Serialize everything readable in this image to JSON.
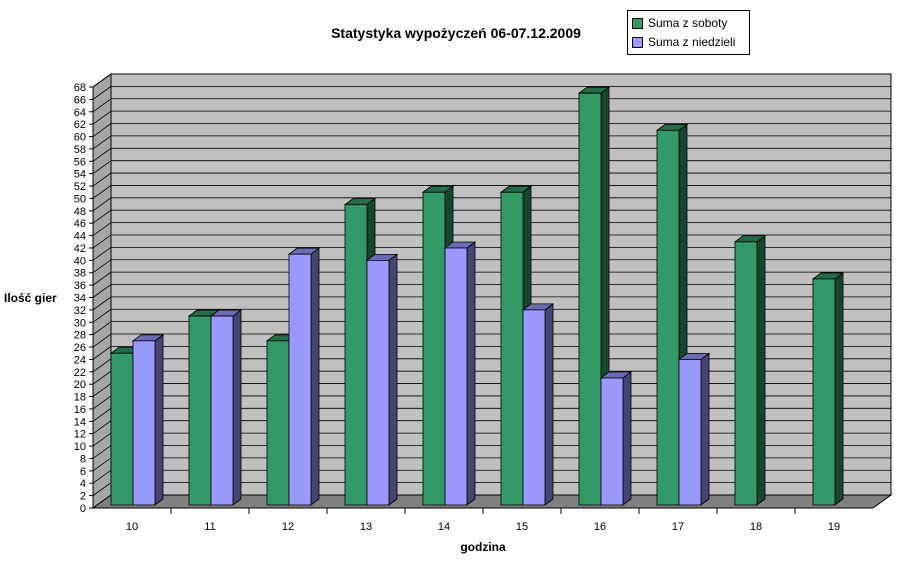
{
  "chart_data": {
    "type": "bar",
    "title": "Statystyka wypożyczeń 06-07.12.2009",
    "xlabel": "godzina",
    "ylabel": "Ilość gier",
    "categories": [
      "10",
      "11",
      "12",
      "13",
      "14",
      "15",
      "16",
      "17",
      "18",
      "19"
    ],
    "ylim": [
      0,
      68
    ],
    "yticks": [
      "0",
      "2",
      "4",
      "6",
      "8",
      "10",
      "12",
      "14",
      "16",
      "18",
      "20",
      "22",
      "24",
      "26",
      "28",
      "30",
      "32",
      "34",
      "36",
      "38",
      "40",
      "42",
      "44",
      "46",
      "48",
      "50",
      "52",
      "54",
      "56",
      "58",
      "60",
      "62",
      "64",
      "66",
      "68"
    ],
    "grid": true,
    "legend_position": "top-right",
    "series": [
      {
        "name": "Suma z soboty",
        "color": "#339966",
        "values": [
          25,
          31,
          27,
          49,
          51,
          51,
          67,
          61,
          43,
          37
        ]
      },
      {
        "name": "Suma z niedzieli",
        "color": "#9999ff",
        "values": [
          27,
          31,
          41,
          40,
          42,
          32,
          21,
          24,
          null,
          null
        ]
      }
    ]
  },
  "colors": {
    "plot_wall": "#c0c0c0",
    "floor": "#808080",
    "grid": "#000000"
  }
}
